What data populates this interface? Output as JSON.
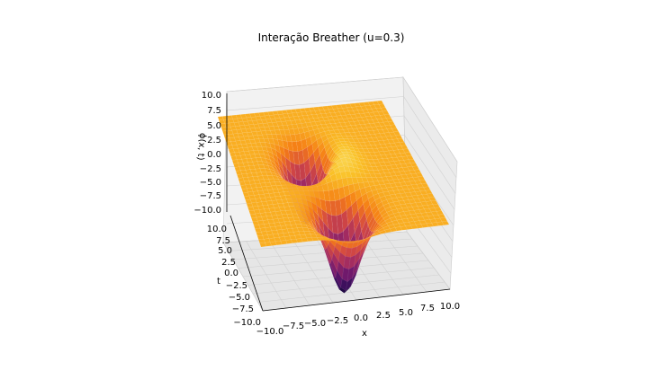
{
  "chart_data": {
    "type": "surface3d",
    "title": "Interação Breather (u=0.3)",
    "xlabel": "x",
    "ylabel": "t",
    "zlabel": "ϕ(x, t)",
    "x_ticks": [
      "−10.0",
      "−7.5",
      "−5.0",
      "−2.5",
      "0.0",
      "2.5",
      "5.0",
      "7.5",
      "10.0"
    ],
    "t_ticks": [
      "10.0",
      "7.5",
      "5.0",
      "2.5",
      "0.0",
      "−2.5",
      "−5.0",
      "−7.5",
      "−10.0"
    ],
    "z_ticks": [
      "10.0",
      "7.5",
      "5.0",
      "2.5",
      "0.0",
      "−2.5",
      "−5.0",
      "−7.5",
      "−10.0"
    ],
    "xlim": [
      -10,
      10
    ],
    "tlim": [
      -10,
      10
    ],
    "zlim": [
      -10,
      10
    ],
    "baseline_phi": 6.28,
    "features": [
      {
        "x": -1.5,
        "t": 2.5,
        "phi": -7.5,
        "kind": "trough"
      },
      {
        "x": 0.5,
        "t": 1.5,
        "phi": 10.0,
        "kind": "peak"
      },
      {
        "x": 0.0,
        "t": -6.0,
        "phi": -8.5,
        "kind": "trough"
      }
    ],
    "colormap": "inferno",
    "grid": true
  }
}
